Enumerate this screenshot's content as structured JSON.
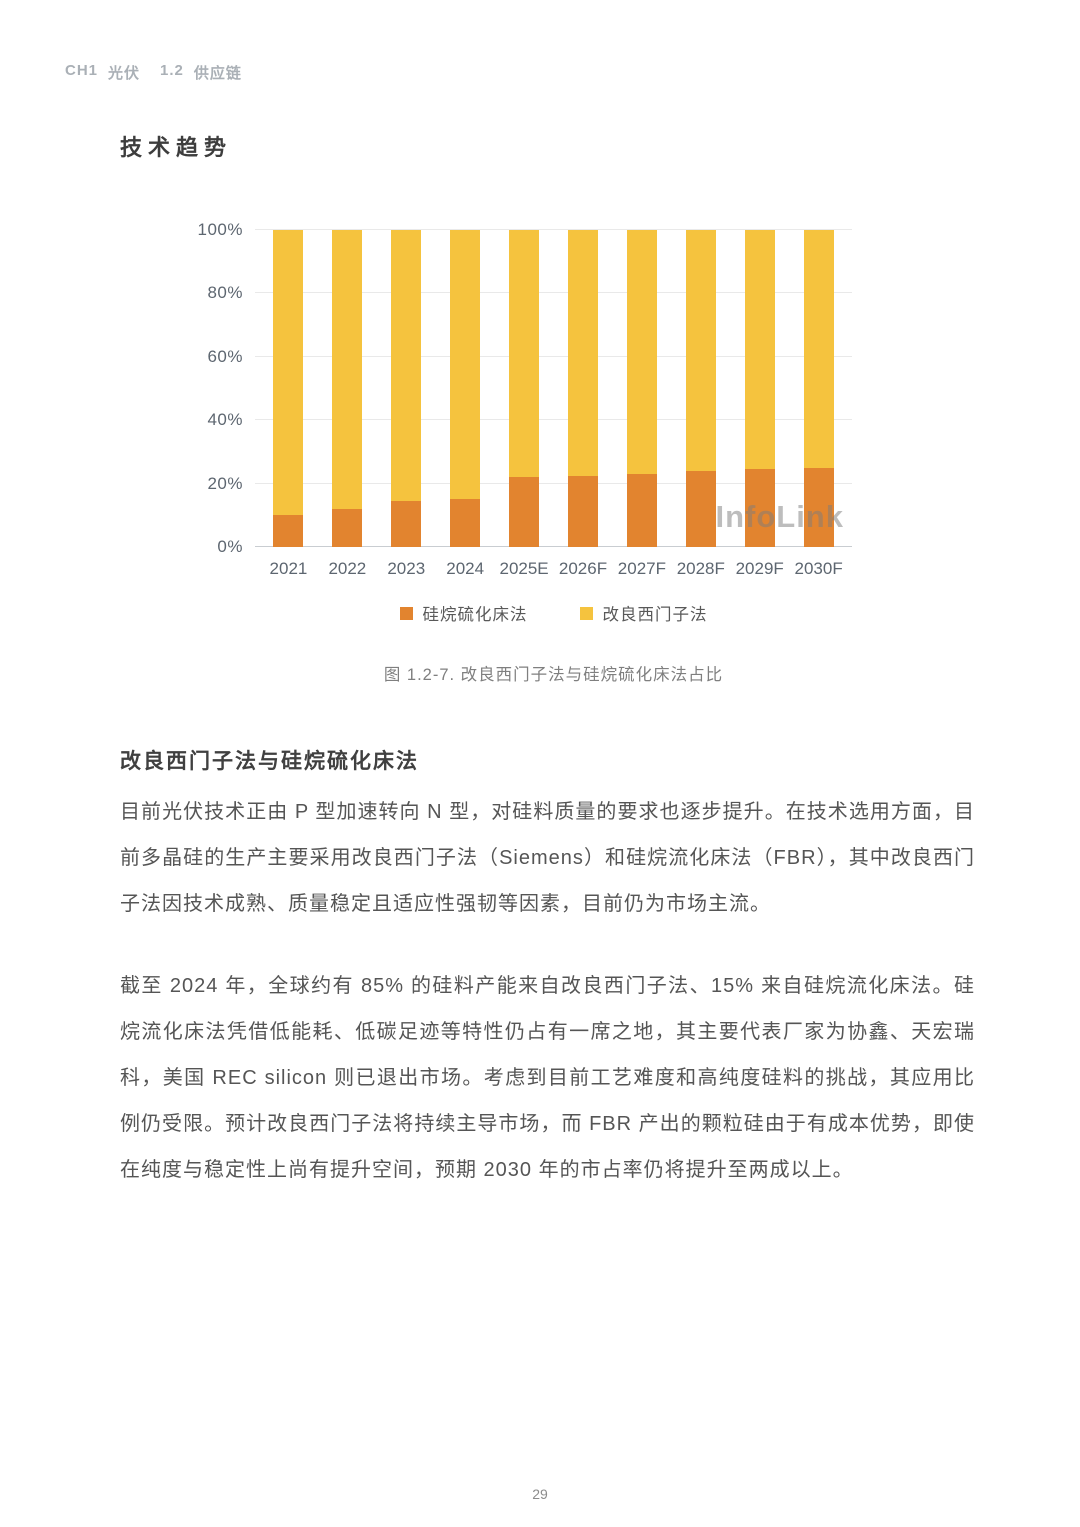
{
  "page": {
    "breadcrumb_parts": [
      "CH1",
      "光伏",
      "1.2",
      "供应链"
    ],
    "page_number": "29"
  },
  "section": {
    "title": "技术趋势",
    "watermark": "InfoLink",
    "figure_caption": "图 1.2-7. 改良西门子法与硅烷硫化床法占比",
    "subsection_heading": "改良西门子法与硅烷硫化床法",
    "paragraph1": "目前光伏技术正由 P 型加速转向 N 型，对硅料质量的要求也逐步提升。在技术选用方面，目前多晶硅的生产主要采用改良西门子法（Siemens）和硅烷流化床法（FBR），其中改良西门子法因技术成熟、质量稳定且适应性强韧等因素，目前仍为市场主流。",
    "paragraph2": "截至 2024 年，全球约有 85% 的硅料产能来自改良西门子法、15% 来自硅烷流化床法。硅烷流化床法凭借低能耗、低碳足迹等特性仍占有一席之地，其主要代表厂家为协鑫、天宏瑞科，美国 REC silicon 则已退出市场。考虑到目前工艺难度和高纯度硅料的挑战，其应用比例仍受限。预计改良西门子法将持续主导市场，而 FBR 产出的颗粒硅由于有成本优势，即使在纯度与稳定性上尚有提升空间，预期 2030 年的市占率仍将提升至两成以上。"
  },
  "chart_data": {
    "type": "bar",
    "stacked": true,
    "title": "图 1.2-7. 改良西门子法与硅烷硫化床法占比",
    "categories": [
      "2021",
      "2022",
      "2023",
      "2024",
      "2025E",
      "2026F",
      "2027F",
      "2028F",
      "2029F",
      "2030F"
    ],
    "series": [
      {
        "name": "硅烷硫化床法",
        "color": "#E2842F",
        "values": [
          10,
          12,
          14.5,
          15,
          22,
          22.5,
          23,
          24,
          24.5,
          25
        ]
      },
      {
        "name": "改良西门子法",
        "color": "#F5C33E",
        "values": [
          90,
          88,
          85.5,
          85,
          78,
          77.5,
          77,
          76,
          75.5,
          75
        ]
      }
    ],
    "xlabel": "",
    "ylabel": "",
    "ylim": [
      0,
      100
    ],
    "yticks": [
      "0%",
      "20%",
      "40%",
      "60%",
      "80%",
      "100%"
    ],
    "grid": true,
    "legend_position": "bottom",
    "watermark": "InfoLink"
  }
}
